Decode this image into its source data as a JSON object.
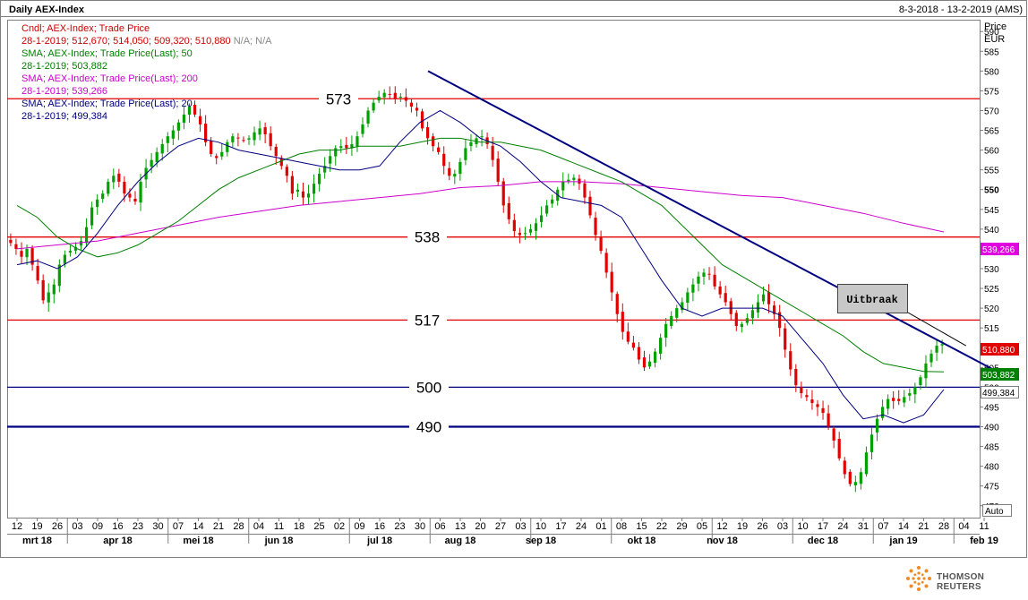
{
  "header": {
    "title": "Daily AEX-Index",
    "date_range": "8-3-2018 - 13-2-2019 (AMS)"
  },
  "axis": {
    "unit_top": "Price",
    "unit_bottom": "EUR",
    "auto_label": "Auto"
  },
  "legend": [
    {
      "text": "Cndl; AEX-Index; Trade Price",
      "color": "#cc0000"
    },
    {
      "text": "28-1-2019; 512,670; 514,050; 509,320; 510,880",
      "color": "#cc0000",
      "suffix": " N/A; N/A",
      "suffix_color": "#888888"
    },
    {
      "text": "SMA; AEX-Index; Trade Price(Last);  50",
      "color": "#008000"
    },
    {
      "text": "28-1-2019; 503,882",
      "color": "#008000"
    },
    {
      "text": "SMA; AEX-Index; Trade Price(Last);  200",
      "color": "#cc00cc"
    },
    {
      "text": "28-1-2019; 539,266",
      "color": "#cc00cc"
    },
    {
      "text": "SMA; AEX-Index; Trade Price(Last);  20",
      "color": "#000080"
    },
    {
      "text": "28-1-2019; 499,384",
      "color": "#000080"
    }
  ],
  "footer": {
    "brand": "THOMSON REUTERS"
  },
  "chart_data": {
    "type": "candlestick",
    "y_ticks": [
      470,
      475,
      480,
      485,
      490,
      495,
      500,
      505,
      510,
      515,
      520,
      525,
      530,
      535,
      540,
      545,
      550,
      555,
      560,
      565,
      570,
      575,
      580,
      585,
      590
    ],
    "ylim": [
      467,
      593
    ],
    "x_tick_labels": [
      "12",
      "19",
      "26",
      "03",
      "09",
      "16",
      "23",
      "30",
      "07",
      "14",
      "21",
      "28",
      "04",
      "11",
      "18",
      "25",
      "02",
      "09",
      "16",
      "23",
      "30",
      "06",
      "13",
      "20",
      "27",
      "03",
      "10",
      "17",
      "24",
      "01",
      "08",
      "15",
      "22",
      "29",
      "05",
      "12",
      "19",
      "26",
      "03",
      "10",
      "17",
      "24",
      "31",
      "07",
      "14",
      "21",
      "28",
      "04",
      "11"
    ],
    "month_labels": [
      {
        "label": "mrt 18",
        "tick_index": 1
      },
      {
        "label": "apr 18",
        "tick_index": 5
      },
      {
        "label": "mei 18",
        "tick_index": 9
      },
      {
        "label": "jun 18",
        "tick_index": 13
      },
      {
        "label": "jul 18",
        "tick_index": 18
      },
      {
        "label": "aug 18",
        "tick_index": 22
      },
      {
        "label": "sep 18",
        "tick_index": 26
      },
      {
        "label": "okt 18",
        "tick_index": 31
      },
      {
        "label": "nov 18",
        "tick_index": 35
      },
      {
        "label": "dec 18",
        "tick_index": 40
      },
      {
        "label": "jan 19",
        "tick_index": 44
      },
      {
        "label": "feb 19",
        "tick_index": 48
      }
    ],
    "month_separators_after": [
      2,
      7,
      11,
      16,
      20,
      25,
      29,
      34,
      38,
      42,
      46
    ],
    "horizontal_levels": [
      {
        "value": 573,
        "label": "573",
        "color": "#e00000"
      },
      {
        "value": 538,
        "label": "538",
        "color": "#e00000"
      },
      {
        "value": 517,
        "label": "517",
        "color": "#e00000"
      },
      {
        "value": 500,
        "label": "500",
        "color": "#000080"
      },
      {
        "value": 490,
        "label": "490",
        "color": "#000080"
      }
    ],
    "trendline": {
      "x1": 20.4,
      "y1": 580,
      "x2": 49.0,
      "y2": 503
    },
    "annotation": {
      "text": "Uitbraak",
      "at_x": 47.1,
      "at_y": 510.5
    },
    "price_tags": [
      {
        "value": 539.266,
        "label": "539,266",
        "color": "#e000e0"
      },
      {
        "value": 510.88,
        "label": "510,880",
        "color": "#e00000"
      },
      {
        "value": 503.882,
        "label": "503,882",
        "color": "#008000"
      },
      {
        "value": 499.384,
        "label": "499,384",
        "color": "#ffffff"
      }
    ],
    "closes": [
      536.5,
      535.0,
      533.0,
      535.0,
      531.0,
      527.0,
      522.0,
      524.0,
      526.0,
      531.0,
      533.5,
      534.5,
      535.5,
      537.0,
      540.5,
      545.5,
      547.5,
      549.0,
      552.0,
      553.5,
      552.0,
      549.0,
      548.0,
      547.0,
      552.0,
      555.5,
      557.5,
      559.5,
      561.5,
      563.5,
      565.0,
      567.0,
      569.0,
      571.0,
      569.0,
      566.5,
      562.0,
      559.0,
      558.0,
      559.5,
      562.0,
      563.5,
      563.0,
      562.5,
      563.0,
      564.5,
      565.5,
      564.0,
      561.0,
      558.5,
      556.0,
      553.5,
      549.0,
      550.0,
      548.0,
      549.0,
      551.5,
      554.0,
      556.0,
      558.5,
      560.5,
      561.0,
      560.5,
      561.5,
      563.5,
      566.5,
      570.0,
      572.0,
      573.5,
      574.5,
      574.0,
      573.0,
      573.5,
      572.5,
      571.0,
      570.0,
      565.5,
      563.0,
      561.0,
      559.5,
      556.0,
      553.5,
      554.0,
      557.0,
      560.5,
      562.0,
      563.0,
      563.5,
      561.5,
      557.5,
      552.0,
      546.0,
      542.5,
      539.5,
      538.5,
      539.0,
      540.0,
      541.5,
      543.5,
      546.0,
      547.5,
      550.0,
      552.0,
      552.5,
      553.0,
      551.5,
      548.0,
      543.5,
      538.5,
      534.5,
      529.0,
      524.0,
      518.5,
      514.0,
      511.5,
      510.0,
      507.0,
      505.0,
      506.5,
      509.0,
      512.5,
      516.0,
      518.0,
      520.0,
      521.5,
      524.0,
      526.0,
      528.0,
      529.0,
      528.5,
      525.5,
      523.5,
      521.5,
      518.5,
      515.5,
      516.0,
      517.5,
      519.5,
      521.5,
      523.5,
      521.0,
      518.5,
      515.0,
      509.5,
      504.5,
      500.5,
      498.5,
      497.5,
      496.0,
      495.0,
      493.5,
      490.0,
      486.5,
      482.0,
      478.0,
      475.5,
      476.0,
      478.5,
      483.5,
      488.0,
      492.0,
      495.0,
      497.0,
      496.5,
      496.5,
      497.5,
      498.5,
      500.0,
      502.5,
      506.0,
      508.5,
      510.5,
      510.9
    ],
    "sma50": [
      {
        "x": 0.0,
        "y": 546
      },
      {
        "x": 1.0,
        "y": 543
      },
      {
        "x": 2.0,
        "y": 538
      },
      {
        "x": 3.0,
        "y": 535
      },
      {
        "x": 4.0,
        "y": 533
      },
      {
        "x": 5.0,
        "y": 534
      },
      {
        "x": 6.0,
        "y": 536
      },
      {
        "x": 7.0,
        "y": 539
      },
      {
        "x": 8.0,
        "y": 542
      },
      {
        "x": 9.0,
        "y": 546
      },
      {
        "x": 10.0,
        "y": 550
      },
      {
        "x": 11.0,
        "y": 553
      },
      {
        "x": 12.0,
        "y": 555
      },
      {
        "x": 13.0,
        "y": 557
      },
      {
        "x": 14.0,
        "y": 559
      },
      {
        "x": 15.0,
        "y": 560
      },
      {
        "x": 16.0,
        "y": 560
      },
      {
        "x": 17.0,
        "y": 561
      },
      {
        "x": 18.0,
        "y": 561
      },
      {
        "x": 19.0,
        "y": 561
      },
      {
        "x": 20.0,
        "y": 562
      },
      {
        "x": 21.0,
        "y": 563
      },
      {
        "x": 22.0,
        "y": 563
      },
      {
        "x": 23.0,
        "y": 562
      },
      {
        "x": 24.0,
        "y": 562
      },
      {
        "x": 25.0,
        "y": 561
      },
      {
        "x": 26.0,
        "y": 560
      },
      {
        "x": 27.0,
        "y": 558
      },
      {
        "x": 28.0,
        "y": 556
      },
      {
        "x": 29.0,
        "y": 554
      },
      {
        "x": 30.0,
        "y": 552
      },
      {
        "x": 31.0,
        "y": 549
      },
      {
        "x": 32.0,
        "y": 546
      },
      {
        "x": 33.0,
        "y": 541
      },
      {
        "x": 34.0,
        "y": 536
      },
      {
        "x": 35.0,
        "y": 531
      },
      {
        "x": 36.0,
        "y": 528
      },
      {
        "x": 37.0,
        "y": 525
      },
      {
        "x": 38.0,
        "y": 522
      },
      {
        "x": 39.0,
        "y": 519
      },
      {
        "x": 40.0,
        "y": 516
      },
      {
        "x": 41.0,
        "y": 513
      },
      {
        "x": 42.0,
        "y": 509
      },
      {
        "x": 43.0,
        "y": 506
      },
      {
        "x": 44.0,
        "y": 505
      },
      {
        "x": 45.0,
        "y": 504
      },
      {
        "x": 46.0,
        "y": 503.9
      }
    ],
    "sma200": [
      {
        "x": 0.0,
        "y": 535
      },
      {
        "x": 2.0,
        "y": 536
      },
      {
        "x": 4.0,
        "y": 537
      },
      {
        "x": 6.0,
        "y": 539
      },
      {
        "x": 8.0,
        "y": 541
      },
      {
        "x": 10.0,
        "y": 543
      },
      {
        "x": 12.0,
        "y": 544.5
      },
      {
        "x": 14.0,
        "y": 546
      },
      {
        "x": 16.0,
        "y": 547
      },
      {
        "x": 18.0,
        "y": 548
      },
      {
        "x": 20.0,
        "y": 549
      },
      {
        "x": 22.0,
        "y": 550.5
      },
      {
        "x": 24.0,
        "y": 551
      },
      {
        "x": 26.0,
        "y": 552
      },
      {
        "x": 28.0,
        "y": 552
      },
      {
        "x": 30.0,
        "y": 551.5
      },
      {
        "x": 32.0,
        "y": 550.5
      },
      {
        "x": 34.0,
        "y": 549.5
      },
      {
        "x": 36.0,
        "y": 548.5
      },
      {
        "x": 38.0,
        "y": 548
      },
      {
        "x": 40.0,
        "y": 546
      },
      {
        "x": 42.0,
        "y": 544
      },
      {
        "x": 44.0,
        "y": 541.5
      },
      {
        "x": 46.0,
        "y": 539.3
      }
    ],
    "sma20": [
      {
        "x": 0.0,
        "y": 531
      },
      {
        "x": 1.0,
        "y": 532
      },
      {
        "x": 2.0,
        "y": 530
      },
      {
        "x": 3.0,
        "y": 533
      },
      {
        "x": 4.0,
        "y": 539
      },
      {
        "x": 5.0,
        "y": 546
      },
      {
        "x": 6.0,
        "y": 552
      },
      {
        "x": 7.0,
        "y": 557
      },
      {
        "x": 8.0,
        "y": 561
      },
      {
        "x": 9.0,
        "y": 563
      },
      {
        "x": 10.0,
        "y": 562
      },
      {
        "x": 11.0,
        "y": 560
      },
      {
        "x": 12.0,
        "y": 559
      },
      {
        "x": 13.0,
        "y": 558
      },
      {
        "x": 14.0,
        "y": 557
      },
      {
        "x": 15.0,
        "y": 556
      },
      {
        "x": 16.0,
        "y": 555
      },
      {
        "x": 17.0,
        "y": 555
      },
      {
        "x": 18.0,
        "y": 556
      },
      {
        "x": 19.0,
        "y": 562
      },
      {
        "x": 20.0,
        "y": 567
      },
      {
        "x": 21.0,
        "y": 570
      },
      {
        "x": 22.0,
        "y": 567
      },
      {
        "x": 23.0,
        "y": 563
      },
      {
        "x": 24.0,
        "y": 561
      },
      {
        "x": 25.0,
        "y": 557
      },
      {
        "x": 26.0,
        "y": 552
      },
      {
        "x": 27.0,
        "y": 548
      },
      {
        "x": 28.0,
        "y": 547
      },
      {
        "x": 29.0,
        "y": 546
      },
      {
        "x": 30.0,
        "y": 543
      },
      {
        "x": 31.0,
        "y": 535
      },
      {
        "x": 32.0,
        "y": 527
      },
      {
        "x": 33.0,
        "y": 520
      },
      {
        "x": 34.0,
        "y": 518
      },
      {
        "x": 35.0,
        "y": 520
      },
      {
        "x": 36.0,
        "y": 520
      },
      {
        "x": 37.0,
        "y": 520
      },
      {
        "x": 38.0,
        "y": 518
      },
      {
        "x": 39.0,
        "y": 512
      },
      {
        "x": 40.0,
        "y": 506
      },
      {
        "x": 41.0,
        "y": 498
      },
      {
        "x": 42.0,
        "y": 492
      },
      {
        "x": 43.0,
        "y": 493
      },
      {
        "x": 44.0,
        "y": 491
      },
      {
        "x": 45.0,
        "y": 493
      },
      {
        "x": 46.0,
        "y": 499.4
      }
    ]
  }
}
